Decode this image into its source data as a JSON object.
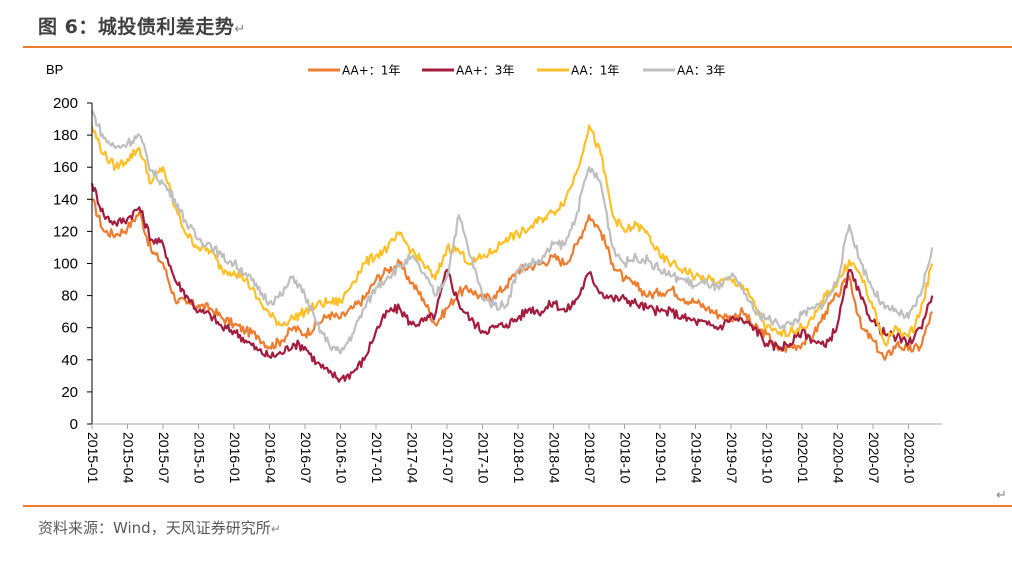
{
  "header": {
    "title": "图 6：城投债利差走势",
    "return_glyph": "↵"
  },
  "footer": {
    "source": "资料来源：Wind，天风证券研究所",
    "return_glyph": "↵"
  },
  "chart_data": {
    "type": "line",
    "title": "城投债利差走势",
    "ylabel": "BP",
    "xlabel": "",
    "ylim": [
      0,
      200
    ],
    "yticks": [
      0,
      20,
      40,
      60,
      80,
      100,
      120,
      140,
      160,
      180,
      200
    ],
    "xtick_labels": [
      "2015-01",
      "2015-04",
      "2015-07",
      "2015-10",
      "2016-01",
      "2016-04",
      "2016-07",
      "2016-10",
      "2017-01",
      "2017-04",
      "2017-07",
      "2017-10",
      "2018-01",
      "2018-04",
      "2018-07",
      "2018-10",
      "2019-01",
      "2019-04",
      "2019-07",
      "2019-10",
      "2020-01",
      "2020-04",
      "2020-07",
      "2020-10"
    ],
    "grid": false,
    "legend_position": "top-center",
    "x": [
      "2015-01",
      "2015-02",
      "2015-03",
      "2015-04",
      "2015-05",
      "2015-06",
      "2015-07",
      "2015-08",
      "2015-09",
      "2015-10",
      "2015-11",
      "2015-12",
      "2016-01",
      "2016-02",
      "2016-03",
      "2016-04",
      "2016-05",
      "2016-06",
      "2016-07",
      "2016-08",
      "2016-09",
      "2016-10",
      "2016-11",
      "2016-12",
      "2017-01",
      "2017-02",
      "2017-03",
      "2017-04",
      "2017-05",
      "2017-06",
      "2017-07",
      "2017-08",
      "2017-09",
      "2017-10",
      "2017-11",
      "2017-12",
      "2018-01",
      "2018-02",
      "2018-03",
      "2018-04",
      "2018-05",
      "2018-06",
      "2018-07",
      "2018-08",
      "2018-09",
      "2018-10",
      "2018-11",
      "2018-12",
      "2019-01",
      "2019-02",
      "2019-03",
      "2019-04",
      "2019-05",
      "2019-06",
      "2019-07",
      "2019-08",
      "2019-09",
      "2019-10",
      "2019-11",
      "2019-12",
      "2020-01",
      "2020-02",
      "2020-03",
      "2020-04",
      "2020-05",
      "2020-06",
      "2020-07",
      "2020-08",
      "2020-09",
      "2020-10",
      "2020-11",
      "2020-12"
    ],
    "series": [
      {
        "name": "AA+：1年",
        "color": "#ED7D31",
        "values": [
          140,
          120,
          118,
          122,
          132,
          108,
          100,
          78,
          75,
          74,
          72,
          66,
          62,
          58,
          55,
          48,
          52,
          60,
          56,
          62,
          68,
          66,
          72,
          78,
          90,
          96,
          100,
          88,
          78,
          62,
          72,
          82,
          84,
          78,
          80,
          86,
          96,
          98,
          100,
          104,
          100,
          112,
          130,
          120,
          100,
          90,
          86,
          80,
          82,
          84,
          78,
          76,
          72,
          68,
          66,
          70,
          60,
          56,
          46,
          48,
          50,
          56,
          70,
          80,
          92,
          60,
          52,
          40,
          50,
          46,
          48,
          70
        ]
      },
      {
        "name": "AA+：3年",
        "color": "#A31D3F",
        "values": [
          150,
          130,
          125,
          128,
          135,
          115,
          112,
          90,
          80,
          70,
          68,
          60,
          58,
          52,
          46,
          42,
          44,
          50,
          48,
          38,
          32,
          28,
          32,
          40,
          58,
          70,
          72,
          62,
          64,
          68,
          96,
          75,
          65,
          58,
          60,
          62,
          66,
          72,
          70,
          76,
          70,
          78,
          94,
          82,
          78,
          78,
          75,
          72,
          70,
          70,
          66,
          64,
          62,
          60,
          66,
          64,
          60,
          50,
          48,
          50,
          58,
          52,
          48,
          62,
          96,
          78,
          64,
          56,
          54,
          50,
          60,
          80
        ]
      },
      {
        "name": "AA：1年",
        "color": "#FFC02A",
        "values": [
          185,
          168,
          160,
          165,
          172,
          150,
          160,
          135,
          118,
          110,
          108,
          96,
          95,
          90,
          78,
          68,
          62,
          66,
          70,
          74,
          76,
          76,
          88,
          100,
          105,
          110,
          118,
          108,
          100,
          90,
          110,
          108,
          100,
          104,
          108,
          116,
          118,
          122,
          128,
          132,
          140,
          158,
          186,
          168,
          130,
          120,
          124,
          118,
          104,
          100,
          96,
          92,
          90,
          88,
          90,
          86,
          74,
          60,
          56,
          58,
          60,
          66,
          80,
          88,
          102,
          92,
          72,
          50,
          60,
          54,
          70,
          100
        ]
      },
      {
        "name": "AA：3年",
        "color": "#BFBFBF",
        "values": [
          195,
          178,
          172,
          175,
          180,
          158,
          150,
          140,
          125,
          115,
          112,
          104,
          100,
          94,
          84,
          76,
          80,
          92,
          80,
          62,
          50,
          44,
          56,
          72,
          85,
          92,
          98,
          104,
          94,
          80,
          92,
          130,
          104,
          80,
          74,
          74,
          96,
          100,
          102,
          112,
          112,
          132,
          160,
          150,
          110,
          100,
          104,
          102,
          96,
          92,
          90,
          86,
          88,
          84,
          92,
          84,
          70,
          66,
          62,
          62,
          68,
          72,
          76,
          90,
          124,
          100,
          84,
          72,
          70,
          66,
          80,
          110
        ]
      }
    ]
  }
}
